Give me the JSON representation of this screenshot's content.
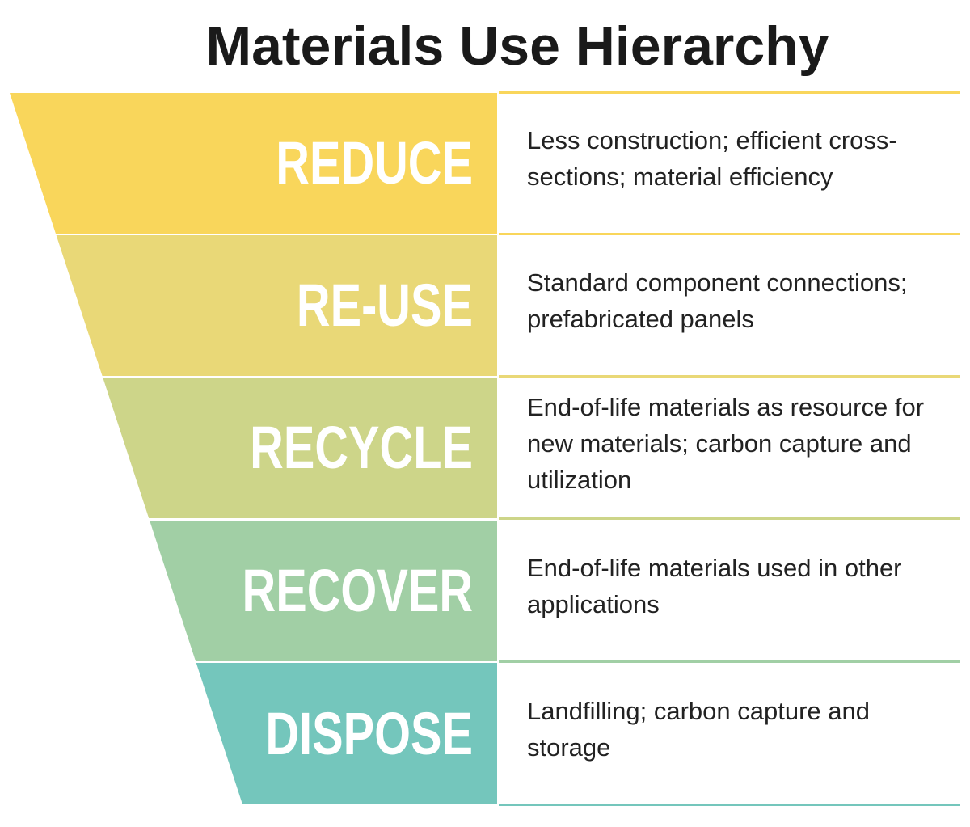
{
  "title": "Materials Use Hierarchy",
  "levels": [
    {
      "label": "REDUCE",
      "description": "Less construction; efficient cross-sections; material efficiency",
      "color": "#f9d65b"
    },
    {
      "label": "RE-USE",
      "description": "Standard component connections; prefabricated panels",
      "color": "#e9d877"
    },
    {
      "label": "RECYCLE",
      "description": "End-of-life materials as resource for new materials; carbon capture and utilization",
      "color": "#cdd589"
    },
    {
      "label": "RECOVER",
      "description": "End-of-life materials used in other applications",
      "color": "#a1cfa5"
    },
    {
      "label": "DISPOSE",
      "description": "Landfilling; carbon capture and storage",
      "color": "#74c6bc"
    }
  ]
}
